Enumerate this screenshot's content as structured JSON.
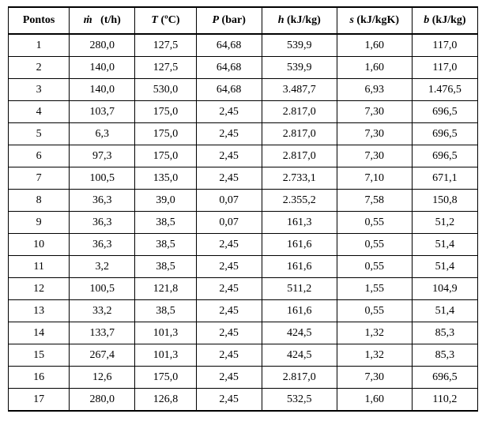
{
  "table": {
    "type": "table",
    "background_color": "#ffffff",
    "border_color": "#000000",
    "font_family": "Times New Roman",
    "header_fontsize": 14,
    "body_fontsize": 14,
    "columns": [
      {
        "key": "pontos",
        "label_plain": "Pontos",
        "symbol": "",
        "unit": "",
        "width_pct": 13,
        "align": "center"
      },
      {
        "key": "m",
        "label_plain": "ṁ (t/h)",
        "symbol": "ṁ",
        "unit": "(t/h)",
        "width_pct": 14,
        "align": "center",
        "italic_symbol": true
      },
      {
        "key": "T",
        "label_plain": "T (ºC)",
        "symbol": "T",
        "unit": "(ºC)",
        "width_pct": 13,
        "align": "center",
        "italic_symbol": true
      },
      {
        "key": "P",
        "label_plain": "P (bar)",
        "symbol": "P",
        "unit": "(bar)",
        "width_pct": 14,
        "align": "center",
        "italic_symbol": true
      },
      {
        "key": "h",
        "label_plain": "h (kJ/kg)",
        "symbol": "h",
        "unit": "(kJ/kg)",
        "width_pct": 16,
        "align": "center",
        "italic_symbol": true
      },
      {
        "key": "s",
        "label_plain": "s (kJ/kgK)",
        "symbol": "s",
        "unit": "(kJ/kgK)",
        "width_pct": 16,
        "align": "center",
        "italic_symbol": true
      },
      {
        "key": "b",
        "label_plain": "b (kJ/kg)",
        "symbol": "b",
        "unit": "(kJ/kg)",
        "width_pct": 14,
        "align": "center",
        "italic_symbol": true
      }
    ],
    "rows": [
      [
        "1",
        "280,0",
        "127,5",
        "64,68",
        "539,9",
        "1,60",
        "117,0"
      ],
      [
        "2",
        "140,0",
        "127,5",
        "64,68",
        "539,9",
        "1,60",
        "117,0"
      ],
      [
        "3",
        "140,0",
        "530,0",
        "64,68",
        "3.487,7",
        "6,93",
        "1.476,5"
      ],
      [
        "4",
        "103,7",
        "175,0",
        "2,45",
        "2.817,0",
        "7,30",
        "696,5"
      ],
      [
        "5",
        "6,3",
        "175,0",
        "2,45",
        "2.817,0",
        "7,30",
        "696,5"
      ],
      [
        "6",
        "97,3",
        "175,0",
        "2,45",
        "2.817,0",
        "7,30",
        "696,5"
      ],
      [
        "7",
        "100,5",
        "135,0",
        "2,45",
        "2.733,1",
        "7,10",
        "671,1"
      ],
      [
        "8",
        "36,3",
        "39,0",
        "0,07",
        "2.355,2",
        "7,58",
        "150,8"
      ],
      [
        "9",
        "36,3",
        "38,5",
        "0,07",
        "161,3",
        "0,55",
        "51,2"
      ],
      [
        "10",
        "36,3",
        "38,5",
        "2,45",
        "161,6",
        "0,55",
        "51,4"
      ],
      [
        "11",
        "3,2",
        "38,5",
        "2,45",
        "161,6",
        "0,55",
        "51,4"
      ],
      [
        "12",
        "100,5",
        "121,8",
        "2,45",
        "511,2",
        "1,55",
        "104,9"
      ],
      [
        "13",
        "33,2",
        "38,5",
        "2,45",
        "161,6",
        "0,55",
        "51,4"
      ],
      [
        "14",
        "133,7",
        "101,3",
        "2,45",
        "424,5",
        "1,32",
        "85,3"
      ],
      [
        "15",
        "267,4",
        "101,3",
        "2,45",
        "424,5",
        "1,32",
        "85,3"
      ],
      [
        "16",
        "12,6",
        "175,0",
        "2,45",
        "2.817,0",
        "7,30",
        "696,5"
      ],
      [
        "17",
        "280,0",
        "126,8",
        "2,45",
        "532,5",
        "1,60",
        "110,2"
      ]
    ]
  }
}
